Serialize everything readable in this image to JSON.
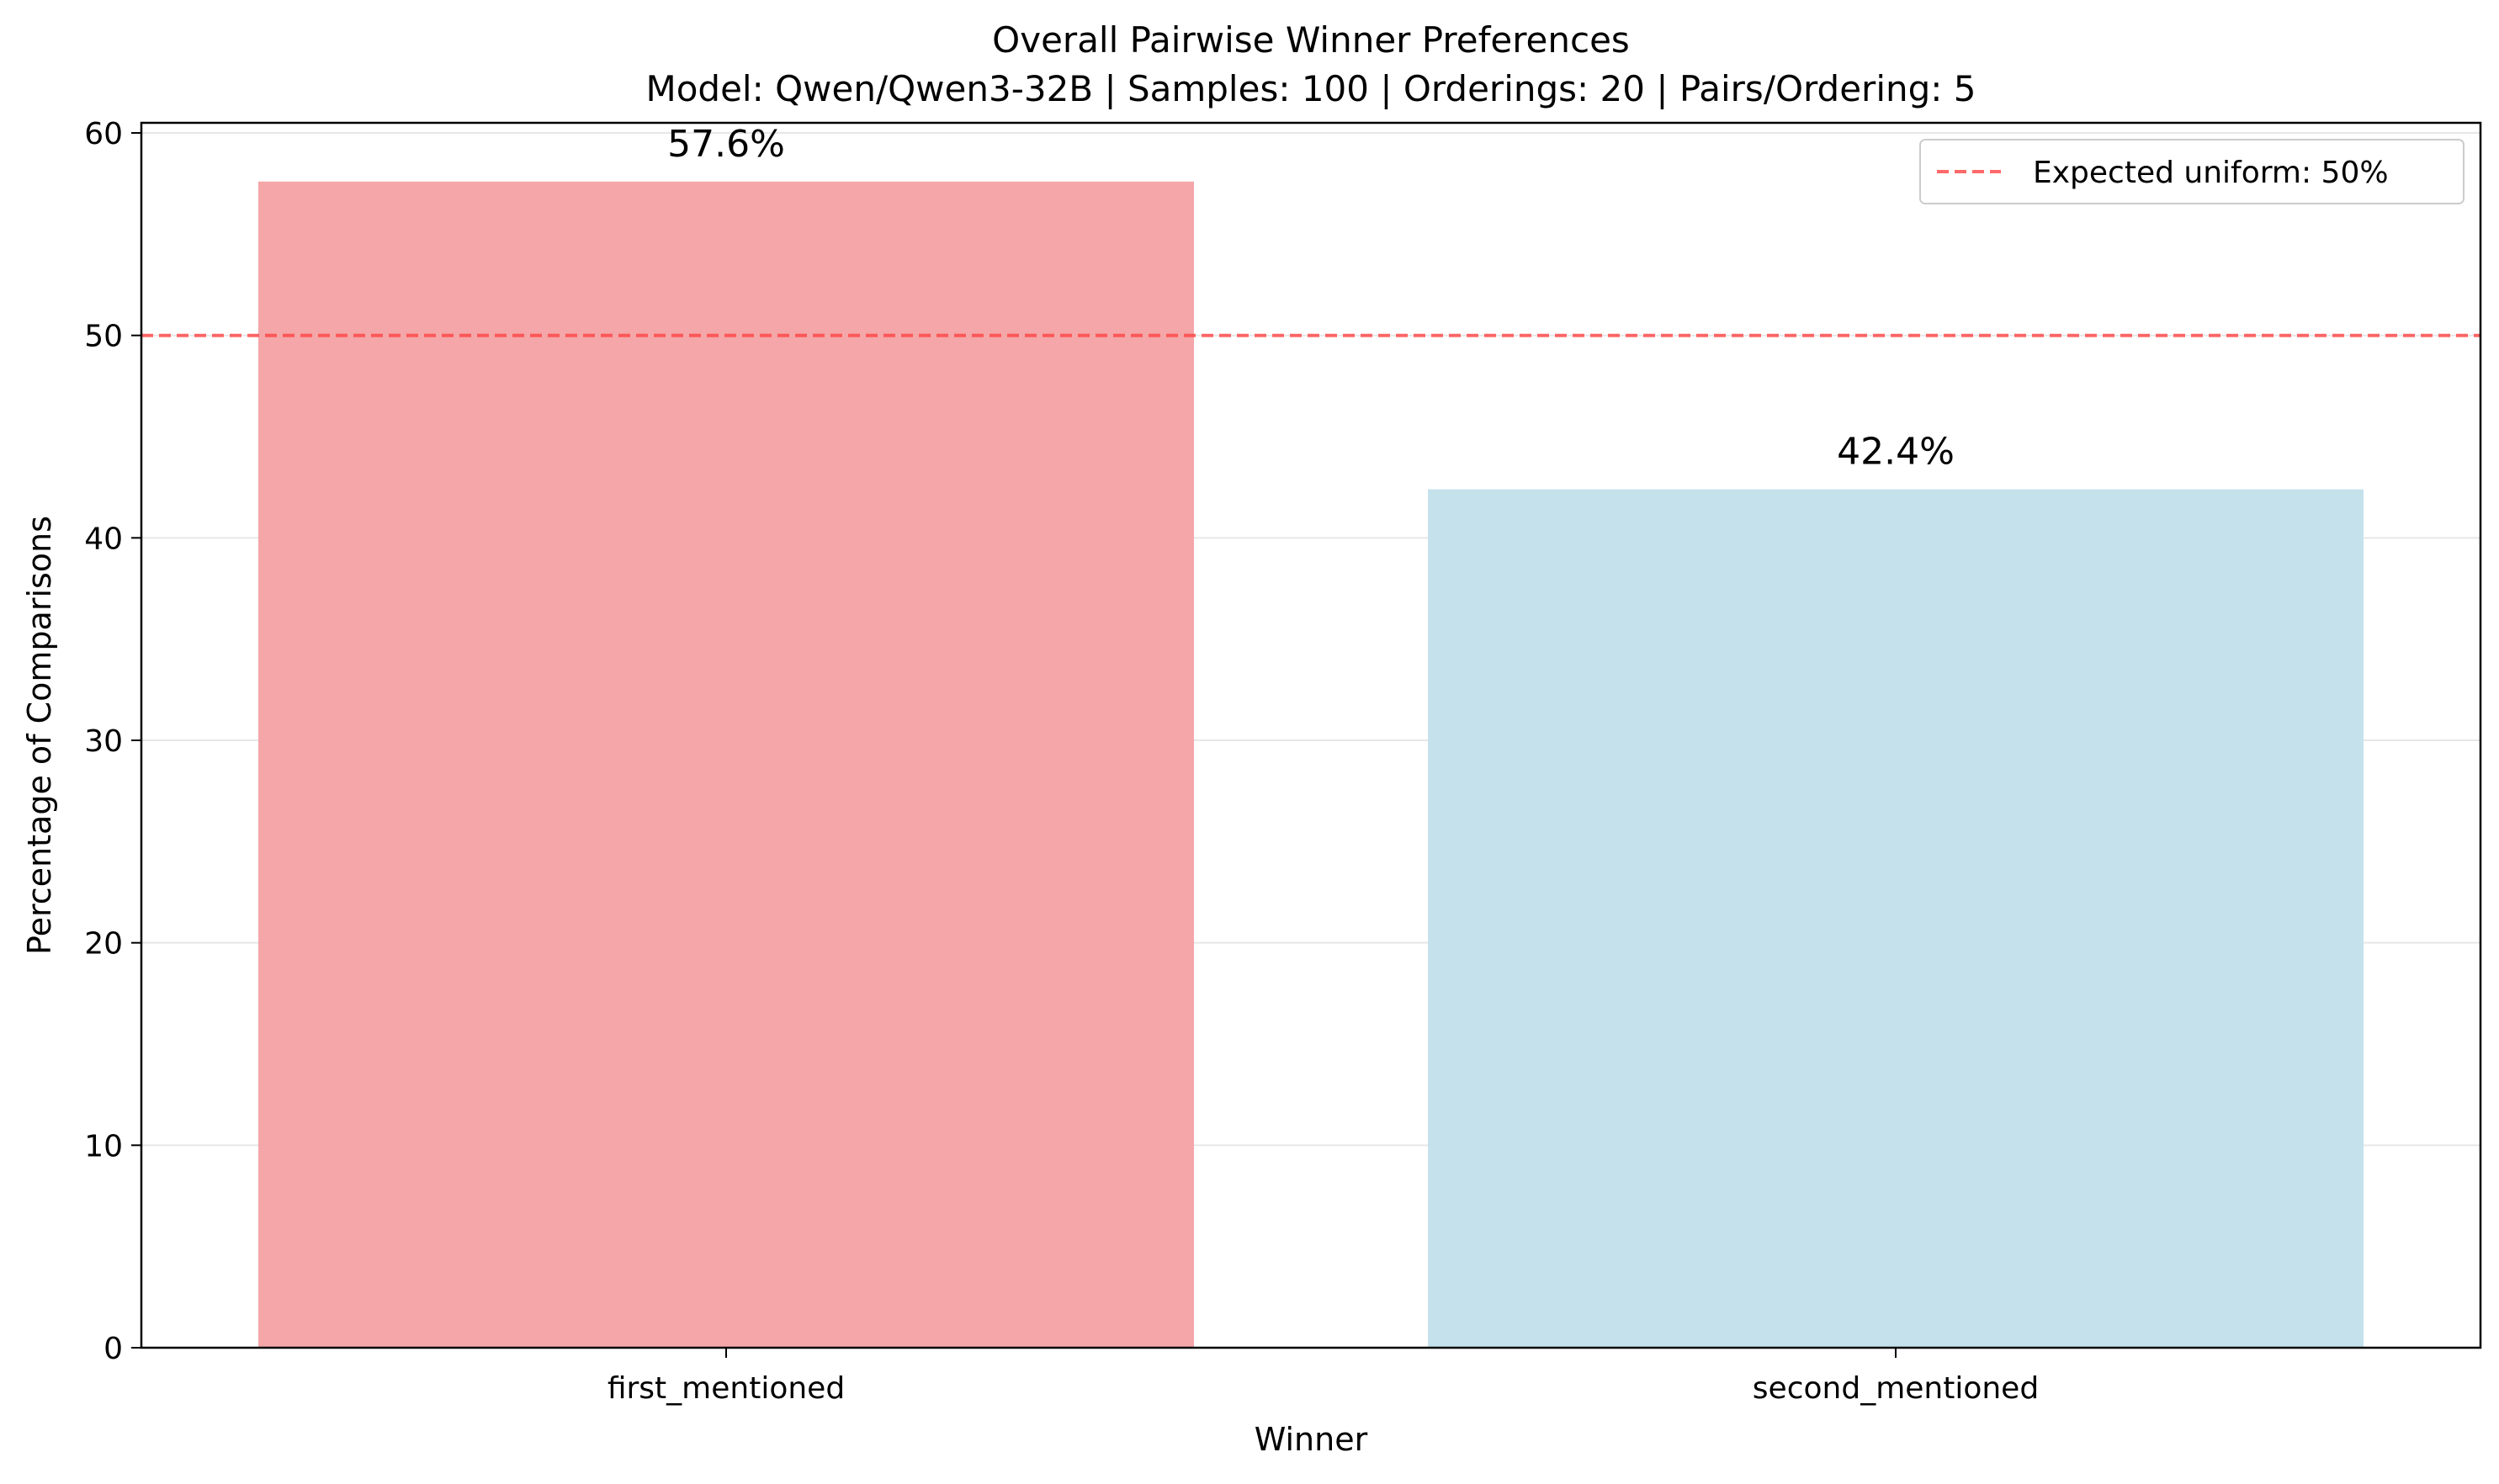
{
  "chart_data": {
    "type": "bar",
    "title": "Overall Pairwise Winner Preferences",
    "subtitle": "Model: Qwen/Qwen3-32B | Samples: 100 | Orderings: 20 | Pairs/Ordering: 5",
    "xlabel": "Winner",
    "ylabel": "Percentage of Comparisons",
    "categories": [
      "first_mentioned",
      "second_mentioned"
    ],
    "values": [
      57.6,
      42.4
    ],
    "data_labels": [
      "57.6%",
      "42.4%"
    ],
    "bar_colors": [
      "#f4a6a8",
      "#c5e2ec"
    ],
    "ylim": [
      0,
      60.5
    ],
    "yticks": [
      0,
      10,
      20,
      30,
      40,
      50,
      60
    ],
    "grid": "horizontal",
    "reference_line": {
      "value": 50,
      "label": "Expected uniform: 50%",
      "color": "#ff4444",
      "style": "dashed"
    },
    "legend_position": "top-right"
  }
}
